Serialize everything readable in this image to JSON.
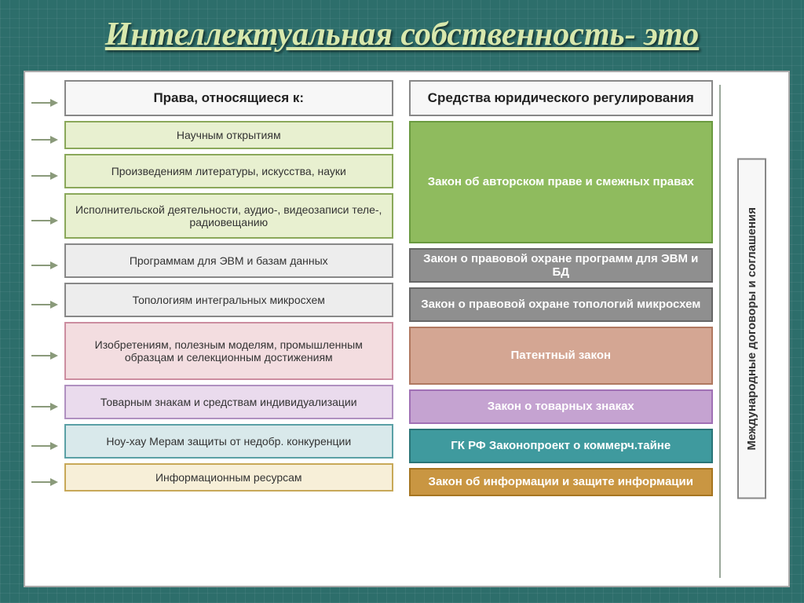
{
  "slide": {
    "title": "Интеллектуальная собственность- это",
    "title_color": "#d8e8ad",
    "title_fontsize": 42,
    "background_color": "#2d6e6b",
    "panel_background": "#ffffff",
    "panel_border": "#aaaaaa"
  },
  "diagram": {
    "type": "flowchart",
    "arrow_color": "#8a9a7a",
    "connector_color": "#9aa89a",
    "left_header": {
      "text": "Права, относящиеся к:",
      "bg": "#f7f7f7",
      "border": "#888888",
      "text_color": "#222222",
      "height": 46
    },
    "right_header": {
      "text": "Средства юридического регулирования",
      "bg": "#f7f7f7",
      "border": "#888888",
      "text_color": "#222222",
      "height": 46
    },
    "left_items": [
      {
        "text": "Научным открытиям",
        "bg": "#e8f0d0",
        "border": "#8aa85a",
        "text_color": "#333333",
        "height": 36
      },
      {
        "text": "Произведениям литературы, искусства, науки",
        "bg": "#e8f0d0",
        "border": "#8aa85a",
        "text_color": "#333333",
        "height": 44
      },
      {
        "text": "Исполнительской деятельности, аудио-, видеозаписи теле-, радиовещанию",
        "bg": "#e8f0d0",
        "border": "#8aa85a",
        "text_color": "#333333",
        "height": 58
      },
      {
        "text": "Программам для ЭВМ и базам данных",
        "bg": "#ededed",
        "border": "#888888",
        "text_color": "#333333",
        "height": 44
      },
      {
        "text": "Топологиям интегральных микросхем",
        "bg": "#ededed",
        "border": "#888888",
        "text_color": "#333333",
        "height": 44
      },
      {
        "text": "Изобретениям, полезным моделям, промышленным образцам и селекционным достижениям",
        "bg": "#f3dde0",
        "border": "#cc8da0",
        "text_color": "#333333",
        "height": 74
      },
      {
        "text": "Товарным знакам и средствам индивидуализации",
        "bg": "#eadbed",
        "border": "#b090c0",
        "text_color": "#333333",
        "height": 44
      },
      {
        "text": "Ноу-хау Мерам защиты от недобр. конкуренции",
        "bg": "#d9e9eb",
        "border": "#5aa0a5",
        "text_color": "#333333",
        "height": 44
      },
      {
        "text": "Информационным ресурсам",
        "bg": "#f7efd8",
        "border": "#c8a858",
        "text_color": "#333333",
        "height": 36
      }
    ],
    "right_items": [
      {
        "text": "Закон об авторском праве и смежных правах",
        "bg": "#8fbb5e",
        "border": "#6a9a40",
        "text_color": "#ffffff",
        "height": 156
      },
      {
        "text": "Закон о правовой охране программ для ЭВМ и БД",
        "bg": "#8f8f8f",
        "border": "#666666",
        "text_color": "#ffffff",
        "height": 44
      },
      {
        "text": "Закон о правовой охране топологий микросхем",
        "bg": "#8f8f8f",
        "border": "#666666",
        "text_color": "#ffffff",
        "height": 44
      },
      {
        "text": "Патентный закон",
        "bg": "#d4a693",
        "border": "#b07860",
        "text_color": "#ffffff",
        "height": 74
      },
      {
        "text": "Закон о товарных знаках",
        "bg": "#c5a3d1",
        "border": "#a070b5",
        "text_color": "#ffffff",
        "height": 44
      },
      {
        "text": "ГК РФ Законопроект о коммерч.тайне",
        "bg": "#3f9a9e",
        "border": "#2a7578",
        "text_color": "#ffffff",
        "height": 44
      },
      {
        "text": "Закон об информации и защите информации",
        "bg": "#c99642",
        "border": "#a67520",
        "text_color": "#ffffff",
        "height": 36
      }
    ],
    "side_box": {
      "text": "Международные договоры и соглашения",
      "bg": "#f7f7f7",
      "border": "#888888",
      "text_color": "#333333"
    },
    "left_arrow_heights": [
      46,
      36,
      44,
      58,
      44,
      44,
      74,
      44,
      44,
      36
    ]
  }
}
